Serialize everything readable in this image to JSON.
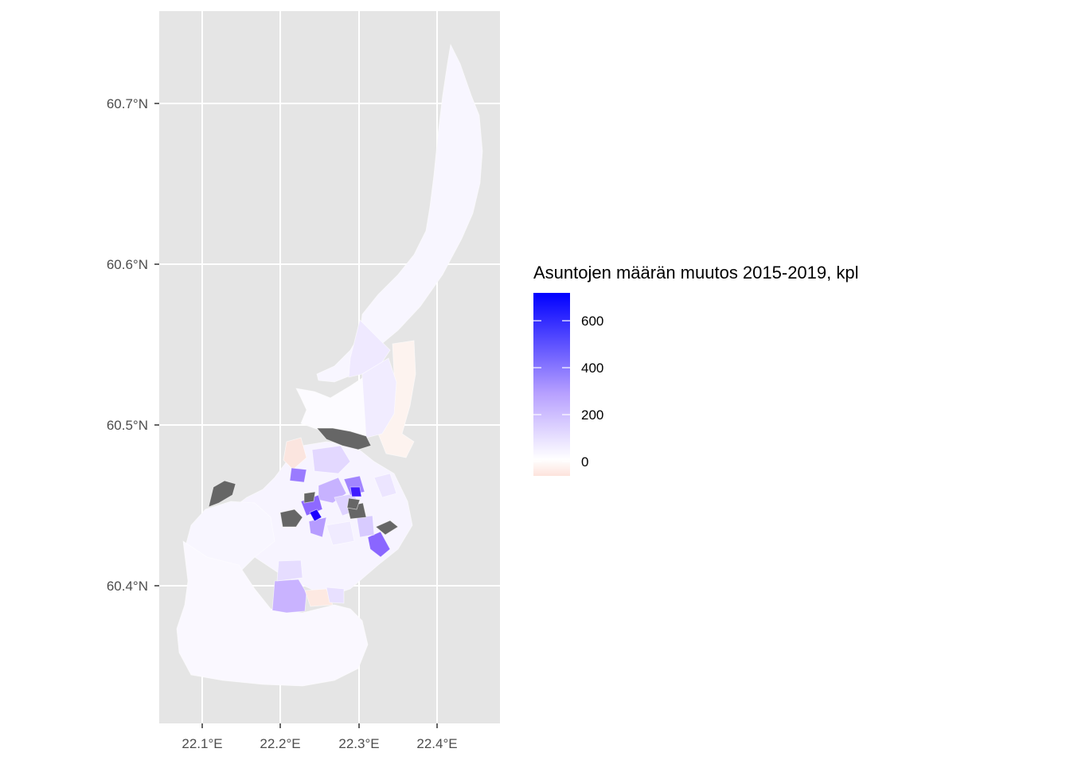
{
  "map": {
    "y_axis": {
      "ticks": [
        {
          "value": 60.4,
          "label": "60.4°N"
        },
        {
          "value": 60.5,
          "label": "60.5°N"
        },
        {
          "value": 60.6,
          "label": "60.6°N"
        },
        {
          "value": 60.7,
          "label": "60.7°N"
        }
      ]
    },
    "x_axis": {
      "ticks": [
        {
          "value": 22.1,
          "label": "22.1°E"
        },
        {
          "value": 22.2,
          "label": "22.2°E"
        },
        {
          "value": 22.3,
          "label": "22.3°E"
        },
        {
          "value": 22.4,
          "label": "22.4°E"
        }
      ]
    },
    "panel_background": "#e5e5e5",
    "grid_color": "#ffffff",
    "na_color": "#666666"
  },
  "legend": {
    "title": "Asuntojen määrän muutos 2015-2019, kpl",
    "ticks": [
      "600",
      "400",
      "200",
      "0"
    ],
    "colors": {
      "low": "#fde3dc",
      "mid": "#ffffff",
      "high": "#0000ff"
    }
  }
}
